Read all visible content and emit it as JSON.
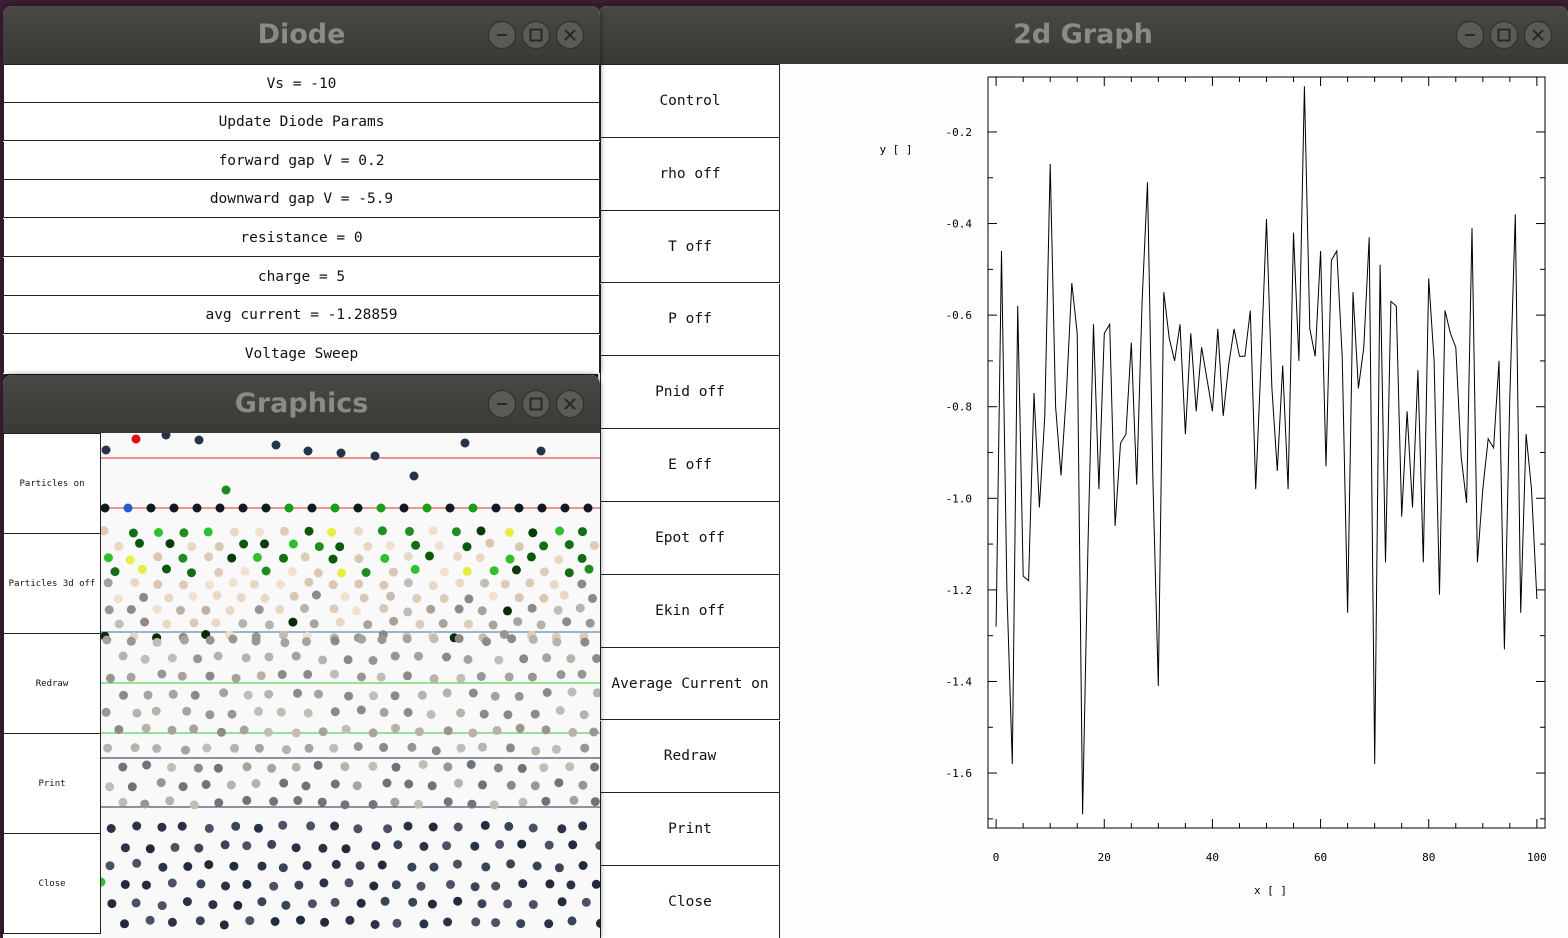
{
  "diode_window": {
    "title": "Diode",
    "params": [
      "Vs = -10",
      "Update Diode Params",
      "forward gap V = 0.2",
      "downward gap V = -5.9",
      "resistance = 0",
      "charge = 5",
      "avg current = -1.28859",
      "Voltage Sweep"
    ]
  },
  "graphics_window": {
    "title": "Graphics",
    "buttons": [
      "Particles on",
      "Particles 3d off",
      "Redraw",
      "Print",
      "Close"
    ]
  },
  "graph_window": {
    "title": "2d Graph",
    "buttons": [
      "Control",
      "rho off",
      "T off",
      "P off",
      "Pnid off",
      "E off",
      "Epot off",
      "Ekin off",
      "Average Current on",
      "Redraw",
      "Print",
      "Close"
    ]
  },
  "chart_data": {
    "type": "line",
    "xlabel": "x [ ]",
    "ylabel": "y [ ]",
    "xlim": [
      -1.5,
      101.5
    ],
    "ylim": [
      -1.72,
      -0.08
    ],
    "xticks": [
      0,
      20,
      40,
      60,
      80,
      100
    ],
    "yticks": [
      -0.2,
      -0.4,
      -0.6,
      -0.8,
      -1.0,
      -1.2,
      -1.4,
      -1.6
    ],
    "ytick_labels": [
      "-0.2",
      "-0.4",
      "-0.6",
      "-0.8",
      "-1.0",
      "-1.2",
      "-1.4",
      "-1.6"
    ],
    "series": [
      {
        "x": [
          0,
          1,
          2,
          3,
          4,
          5,
          6,
          7,
          8,
          9,
          10,
          11,
          12,
          13,
          14,
          15,
          16,
          17,
          18,
          19,
          20,
          21,
          22,
          23,
          24,
          25,
          26,
          27,
          28,
          29,
          30,
          31,
          32,
          33,
          34,
          35,
          36,
          37,
          38,
          39,
          40,
          41,
          42,
          43,
          44,
          45,
          46,
          47,
          48,
          49,
          50,
          51,
          52,
          53,
          54,
          55,
          56,
          57,
          58,
          59,
          60,
          61,
          62,
          63,
          64,
          65,
          66,
          67,
          68,
          69,
          70,
          71,
          72,
          73,
          74,
          75,
          76,
          77,
          78,
          79,
          80,
          81,
          82,
          83,
          84,
          85,
          86,
          87,
          88,
          89,
          90,
          91,
          92,
          93,
          94,
          95,
          96,
          97,
          98,
          99,
          100
        ],
        "y": [
          -1.28,
          -0.46,
          -1.2,
          -1.58,
          -0.58,
          -1.17,
          -1.18,
          -0.77,
          -1.02,
          -0.82,
          -0.27,
          -0.8,
          -0.95,
          -0.77,
          -0.53,
          -0.64,
          -1.69,
          -1.1,
          -0.62,
          -0.98,
          -0.64,
          -0.62,
          -1.06,
          -0.88,
          -0.86,
          -0.66,
          -0.97,
          -0.57,
          -0.31,
          -0.96,
          -1.41,
          -0.55,
          -0.65,
          -0.7,
          -0.62,
          -0.86,
          -0.64,
          -0.81,
          -0.67,
          -0.74,
          -0.81,
          -0.63,
          -0.82,
          -0.71,
          -0.63,
          -0.69,
          -0.69,
          -0.59,
          -0.98,
          -0.7,
          -0.39,
          -0.76,
          -0.94,
          -0.71,
          -0.98,
          -0.42,
          -0.7,
          -0.1,
          -0.63,
          -0.69,
          -0.46,
          -0.93,
          -0.48,
          -0.46,
          -0.69,
          -1.25,
          -0.55,
          -0.76,
          -0.67,
          -0.43,
          -1.58,
          -0.49,
          -1.14,
          -0.57,
          -0.58,
          -1.04,
          -0.81,
          -1.02,
          -0.72,
          -1.14,
          -0.52,
          -0.7,
          -1.21,
          -0.59,
          -0.64,
          -0.67,
          -0.91,
          -1.01,
          -0.41,
          -1.14,
          -0.98,
          -0.87,
          -0.89,
          -0.7,
          -1.33,
          -0.78,
          -0.38,
          -1.25,
          -0.86,
          -0.98,
          -1.22
        ]
      }
    ]
  }
}
